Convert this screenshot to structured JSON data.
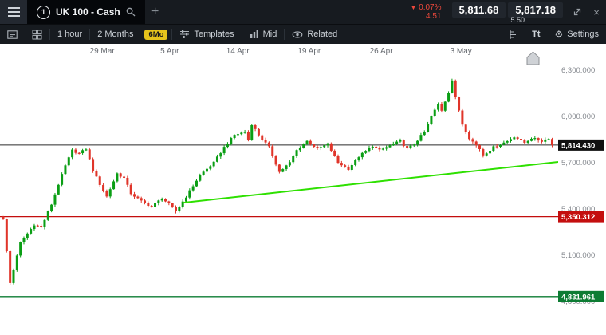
{
  "titlebar": {
    "instrument": "UK 100 - Cash",
    "instrument_badge": "1",
    "add_tab_label": "+",
    "change_pct": "0.07%",
    "change_abs": "4.51",
    "sell_price": "5,811.68",
    "buy_price": "5,817.18",
    "spread": "5.50"
  },
  "icons": {
    "down_triangle": "▼",
    "gear": "⚙",
    "close": "×"
  },
  "toolbar": {
    "timeframe": "1 hour",
    "range": "2 Months",
    "range_badge": "6Mo",
    "templates": "Templates",
    "price_type": "Mid",
    "related": "Related",
    "text_tool": "Tt",
    "settings": "Settings"
  },
  "chart_data": {
    "type": "candlestick",
    "title": "UK 100 - Cash, 1 hour candles, 2 months",
    "x_axis": {
      "labels": [
        "29 Mar",
        "5 Apr",
        "14 Apr",
        "19 Apr",
        "26 Apr",
        "3 May"
      ],
      "positions": [
        0.183,
        0.304,
        0.426,
        0.554,
        0.683,
        0.826
      ]
    },
    "y_axis": {
      "top_price": 6300,
      "bottom_price": 4800,
      "ticks": [
        6300,
        6000,
        5700,
        5400,
        5100,
        4800
      ],
      "tick_labels": [
        "6,300.000",
        "6,000.000",
        "5,700.000",
        "5,400.000",
        "5,100.000",
        "4,800.000"
      ]
    },
    "levels": [
      {
        "name": "current-price",
        "price": 5814.43,
        "label": "5,814.430",
        "line_color": "#2b2b2b",
        "box_color": "#101010"
      },
      {
        "name": "mid-support",
        "price": 5350.312,
        "label": "5,350.312",
        "line_color": "#c40e0e",
        "box_color": "#c40e0e"
      },
      {
        "name": "lower-support",
        "price": 4831.961,
        "label": "4,831.961",
        "line_color": "#0d7c33",
        "box_color": "#0d7c33"
      }
    ],
    "trendline": {
      "from_frac": 0.327,
      "from_price": 5440,
      "to_frac": 1.0,
      "to_price": 5705,
      "color": "#2ee000"
    },
    "last_price": 5814.43,
    "candles": {
      "count": 160,
      "up_color": "#0a9e14",
      "down_color": "#e0352a",
      "close_path_anchors": [
        [
          0,
          5350
        ],
        [
          1,
          5330
        ],
        [
          3,
          4920
        ],
        [
          6,
          5180
        ],
        [
          10,
          5300
        ],
        [
          12,
          5280
        ],
        [
          15,
          5430
        ],
        [
          17,
          5560
        ],
        [
          19,
          5680
        ],
        [
          21,
          5780
        ],
        [
          23,
          5760
        ],
        [
          25,
          5790
        ],
        [
          27,
          5650
        ],
        [
          29,
          5560
        ],
        [
          31,
          5480
        ],
        [
          34,
          5630
        ],
        [
          36,
          5600
        ],
        [
          38,
          5500
        ],
        [
          41,
          5450
        ],
        [
          44,
          5415
        ],
        [
          47,
          5470
        ],
        [
          49,
          5430
        ],
        [
          51,
          5385
        ],
        [
          54,
          5480
        ],
        [
          56,
          5550
        ],
        [
          58,
          5620
        ],
        [
          62,
          5700
        ],
        [
          65,
          5800
        ],
        [
          68,
          5880
        ],
        [
          71,
          5900
        ],
        [
          72,
          5850
        ],
        [
          73,
          5950
        ],
        [
          75,
          5880
        ],
        [
          78,
          5800
        ],
        [
          81,
          5640
        ],
        [
          84,
          5700
        ],
        [
          86,
          5780
        ],
        [
          89,
          5840
        ],
        [
          92,
          5790
        ],
        [
          95,
          5820
        ],
        [
          98,
          5700
        ],
        [
          101,
          5660
        ],
        [
          104,
          5740
        ],
        [
          108,
          5810
        ],
        [
          110,
          5780
        ],
        [
          113,
          5810
        ],
        [
          116,
          5840
        ],
        [
          118,
          5790
        ],
        [
          120,
          5820
        ],
        [
          123,
          5900
        ],
        [
          125,
          6000
        ],
        [
          127,
          6080
        ],
        [
          128,
          6040
        ],
        [
          130,
          6160
        ],
        [
          131,
          6235
        ],
        [
          132,
          6120
        ],
        [
          133,
          6040
        ],
        [
          134,
          5950
        ],
        [
          136,
          5860
        ],
        [
          139,
          5790
        ],
        [
          140,
          5750
        ],
        [
          143,
          5800
        ],
        [
          147,
          5840
        ],
        [
          149,
          5870
        ],
        [
          152,
          5830
        ],
        [
          154,
          5860
        ],
        [
          157,
          5840
        ],
        [
          159,
          5860
        ],
        [
          160,
          5814.43
        ]
      ]
    }
  }
}
